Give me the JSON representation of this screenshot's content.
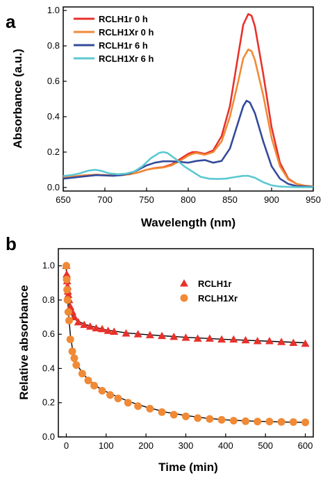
{
  "colors": {
    "red": "#e8312a",
    "orange": "#f08a36",
    "navy": "#344a9a",
    "cyan": "#5cc8d2",
    "fit": "#000000"
  },
  "chart_data": [
    {
      "type": "line",
      "panel_label": "a",
      "xlabel": "Wavelength (nm)",
      "ylabel": "Absorbance (a.u.)",
      "xlim": [
        650,
        950
      ],
      "ylim": [
        -0.02,
        1.02
      ],
      "x_ticks": [
        "650",
        "700",
        "750",
        "800",
        "850",
        "900",
        "950"
      ],
      "y_ticks": [
        "0.0",
        "0.2",
        "0.4",
        "0.6",
        "0.8",
        "1.0"
      ],
      "legend_position": "top-left",
      "series": [
        {
          "name": "RCLH1r    0 h",
          "color": "#e8312a",
          "points": [
            [
              650,
              0.055
            ],
            [
              660,
              0.06
            ],
            [
              670,
              0.066
            ],
            [
              680,
              0.07
            ],
            [
              690,
              0.072
            ],
            [
              700,
              0.07
            ],
            [
              710,
              0.068
            ],
            [
              720,
              0.07
            ],
            [
              730,
              0.075
            ],
            [
              740,
              0.085
            ],
            [
              750,
              0.1
            ],
            [
              760,
              0.11
            ],
            [
              770,
              0.115
            ],
            [
              780,
              0.13
            ],
            [
              790,
              0.16
            ],
            [
              800,
              0.19
            ],
            [
              805,
              0.2
            ],
            [
              810,
              0.2
            ],
            [
              820,
              0.19
            ],
            [
              830,
              0.21
            ],
            [
              840,
              0.29
            ],
            [
              850,
              0.46
            ],
            [
              860,
              0.75
            ],
            [
              866,
              0.92
            ],
            [
              872,
              0.98
            ],
            [
              876,
              0.97
            ],
            [
              880,
              0.91
            ],
            [
              890,
              0.64
            ],
            [
              900,
              0.34
            ],
            [
              910,
              0.14
            ],
            [
              920,
              0.05
            ],
            [
              930,
              0.02
            ],
            [
              940,
              0.01
            ],
            [
              950,
              0.005
            ]
          ]
        },
        {
          "name": "RCLH1Xr 0 h",
          "color": "#f08a36",
          "points": [
            [
              650,
              0.055
            ],
            [
              660,
              0.06
            ],
            [
              670,
              0.066
            ],
            [
              680,
              0.07
            ],
            [
              690,
              0.072
            ],
            [
              700,
              0.07
            ],
            [
              710,
              0.068
            ],
            [
              720,
              0.07
            ],
            [
              730,
              0.075
            ],
            [
              740,
              0.085
            ],
            [
              750,
              0.1
            ],
            [
              760,
              0.108
            ],
            [
              770,
              0.113
            ],
            [
              780,
              0.125
            ],
            [
              790,
              0.15
            ],
            [
              800,
              0.18
            ],
            [
              805,
              0.19
            ],
            [
              810,
              0.195
            ],
            [
              820,
              0.185
            ],
            [
              830,
              0.2
            ],
            [
              840,
              0.26
            ],
            [
              850,
              0.4
            ],
            [
              860,
              0.6
            ],
            [
              866,
              0.73
            ],
            [
              872,
              0.78
            ],
            [
              876,
              0.77
            ],
            [
              880,
              0.72
            ],
            [
              890,
              0.52
            ],
            [
              900,
              0.28
            ],
            [
              910,
              0.12
            ],
            [
              920,
              0.045
            ],
            [
              930,
              0.02
            ],
            [
              940,
              0.01
            ],
            [
              950,
              0.005
            ]
          ]
        },
        {
          "name": "RCLH1r    6 h",
          "color": "#344a9a",
          "points": [
            [
              650,
              0.05
            ],
            [
              660,
              0.055
            ],
            [
              670,
              0.06
            ],
            [
              680,
              0.065
            ],
            [
              690,
              0.07
            ],
            [
              700,
              0.068
            ],
            [
              710,
              0.066
            ],
            [
              720,
              0.07
            ],
            [
              730,
              0.08
            ],
            [
              740,
              0.1
            ],
            [
              750,
              0.125
            ],
            [
              760,
              0.14
            ],
            [
              770,
              0.148
            ],
            [
              780,
              0.148
            ],
            [
              790,
              0.145
            ],
            [
              800,
              0.14
            ],
            [
              810,
              0.15
            ],
            [
              820,
              0.155
            ],
            [
              830,
              0.14
            ],
            [
              840,
              0.15
            ],
            [
              850,
              0.22
            ],
            [
              860,
              0.37
            ],
            [
              866,
              0.46
            ],
            [
              870,
              0.49
            ],
            [
              874,
              0.48
            ],
            [
              880,
              0.42
            ],
            [
              890,
              0.26
            ],
            [
              900,
              0.12
            ],
            [
              910,
              0.05
            ],
            [
              920,
              0.02
            ],
            [
              930,
              0.008
            ],
            [
              950,
              0.003
            ]
          ]
        },
        {
          "name": "RCLH1Xr 6 h",
          "color": "#5cc8d2",
          "points": [
            [
              650,
              0.065
            ],
            [
              660,
              0.07
            ],
            [
              670,
              0.08
            ],
            [
              680,
              0.095
            ],
            [
              688,
              0.1
            ],
            [
              695,
              0.095
            ],
            [
              705,
              0.08
            ],
            [
              715,
              0.075
            ],
            [
              725,
              0.078
            ],
            [
              735,
              0.09
            ],
            [
              745,
              0.12
            ],
            [
              755,
              0.165
            ],
            [
              765,
              0.195
            ],
            [
              770,
              0.2
            ],
            [
              775,
              0.195
            ],
            [
              785,
              0.16
            ],
            [
              795,
              0.12
            ],
            [
              805,
              0.09
            ],
            [
              815,
              0.06
            ],
            [
              825,
              0.05
            ],
            [
              835,
              0.048
            ],
            [
              845,
              0.05
            ],
            [
              855,
              0.058
            ],
            [
              865,
              0.065
            ],
            [
              872,
              0.066
            ],
            [
              880,
              0.055
            ],
            [
              890,
              0.03
            ],
            [
              900,
              0.012
            ],
            [
              910,
              0.005
            ],
            [
              930,
              0.002
            ],
            [
              950,
              0.001
            ]
          ]
        }
      ]
    },
    {
      "type": "scatter",
      "panel_label": "b",
      "xlabel": "Time (min)",
      "ylabel": "Relative absorbance",
      "xlim": [
        -20,
        620
      ],
      "ylim": [
        0.0,
        1.1
      ],
      "x_ticks": [
        "0",
        "100",
        "200",
        "300",
        "400",
        "500",
        "600"
      ],
      "y_ticks": [
        "0.0",
        "0.2",
        "0.4",
        "0.6",
        "0.8",
        "1.0"
      ],
      "legend_position": "top-right",
      "series": [
        {
          "name": "RCLH1r",
          "color": "#e8312a",
          "marker": "triangle",
          "points": [
            [
              0,
              1.0
            ],
            [
              1,
              0.95
            ],
            [
              2,
              0.91
            ],
            [
              3,
              0.88
            ],
            [
              4,
              0.85
            ],
            [
              5,
              0.83
            ],
            [
              7,
              0.8
            ],
            [
              10,
              0.76
            ],
            [
              15,
              0.73
            ],
            [
              20,
              0.7
            ],
            [
              30,
              0.67
            ],
            [
              45,
              0.655
            ],
            [
              60,
              0.645
            ],
            [
              75,
              0.635
            ],
            [
              90,
              0.63
            ],
            [
              105,
              0.62
            ],
            [
              120,
              0.615
            ],
            [
              150,
              0.605
            ],
            [
              180,
              0.6
            ],
            [
              210,
              0.595
            ],
            [
              240,
              0.59
            ],
            [
              270,
              0.585
            ],
            [
              300,
              0.58
            ],
            [
              330,
              0.575
            ],
            [
              360,
              0.575
            ],
            [
              390,
              0.57
            ],
            [
              420,
              0.57
            ],
            [
              450,
              0.565
            ],
            [
              480,
              0.56
            ],
            [
              510,
              0.56
            ],
            [
              540,
              0.555
            ],
            [
              570,
              0.55
            ],
            [
              600,
              0.545
            ]
          ]
        },
        {
          "name": "RCLH1Xr",
          "color": "#f08a36",
          "marker": "circle",
          "points": [
            [
              0,
              1.0
            ],
            [
              1,
              0.92
            ],
            [
              2,
              0.86
            ],
            [
              3,
              0.8
            ],
            [
              5,
              0.73
            ],
            [
              7,
              0.68
            ],
            [
              10,
              0.57
            ],
            [
              15,
              0.5
            ],
            [
              20,
              0.46
            ],
            [
              25,
              0.42
            ],
            [
              40,
              0.37
            ],
            [
              55,
              0.33
            ],
            [
              70,
              0.3
            ],
            [
              90,
              0.27
            ],
            [
              110,
              0.245
            ],
            [
              130,
              0.225
            ],
            [
              155,
              0.2
            ],
            [
              180,
              0.18
            ],
            [
              210,
              0.165
            ],
            [
              240,
              0.145
            ],
            [
              270,
              0.13
            ],
            [
              300,
              0.12
            ],
            [
              330,
              0.11
            ],
            [
              360,
              0.105
            ],
            [
              390,
              0.1
            ],
            [
              420,
              0.095
            ],
            [
              450,
              0.092
            ],
            [
              480,
              0.09
            ],
            [
              510,
              0.09
            ],
            [
              540,
              0.088
            ],
            [
              570,
              0.087
            ],
            [
              600,
              0.085
            ]
          ]
        }
      ],
      "fit_lines": [
        {
          "color": "#000000",
          "points": [
            [
              0,
              0.98
            ],
            [
              3,
              0.87
            ],
            [
              6,
              0.8
            ],
            [
              10,
              0.74
            ],
            [
              15,
              0.705
            ],
            [
              20,
              0.69
            ],
            [
              30,
              0.675
            ],
            [
              50,
              0.655
            ],
            [
              100,
              0.625
            ],
            [
              150,
              0.608
            ],
            [
              200,
              0.598
            ],
            [
              300,
              0.582
            ],
            [
              400,
              0.57
            ],
            [
              500,
              0.56
            ],
            [
              600,
              0.55
            ]
          ]
        },
        {
          "color": "#000000",
          "points": [
            [
              0,
              0.98
            ],
            [
              3,
              0.82
            ],
            [
              6,
              0.71
            ],
            [
              10,
              0.6
            ],
            [
              15,
              0.52
            ],
            [
              20,
              0.47
            ],
            [
              30,
              0.41
            ],
            [
              45,
              0.36
            ],
            [
              60,
              0.325
            ],
            [
              80,
              0.29
            ],
            [
              100,
              0.265
            ],
            [
              130,
              0.233
            ],
            [
              160,
              0.205
            ],
            [
              200,
              0.175
            ],
            [
              250,
              0.145
            ],
            [
              300,
              0.125
            ],
            [
              350,
              0.11
            ],
            [
              400,
              0.1
            ],
            [
              450,
              0.094
            ],
            [
              500,
              0.09
            ],
            [
              550,
              0.087
            ],
            [
              600,
              0.085
            ]
          ]
        }
      ]
    }
  ]
}
